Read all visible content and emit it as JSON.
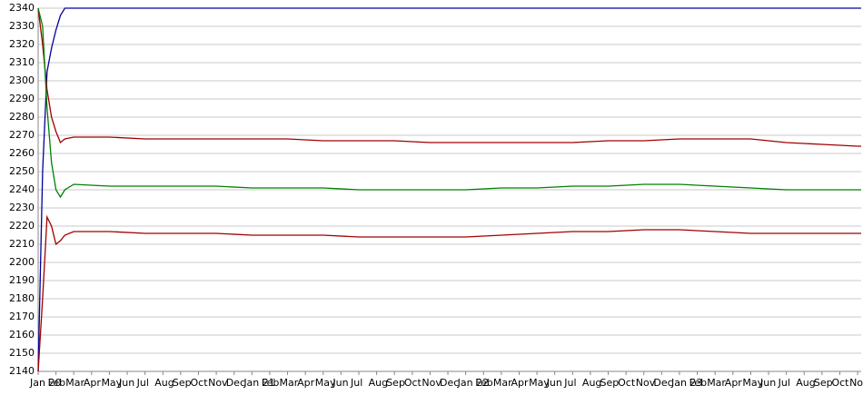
{
  "chart_data": {
    "type": "line",
    "x": [
      0,
      0.25,
      0.5,
      0.75,
      1,
      1.25,
      1.5,
      2,
      4,
      6,
      8,
      10,
      12,
      14,
      16,
      18,
      20,
      22,
      24,
      26,
      28,
      30,
      32,
      34,
      36,
      38,
      40,
      42,
      44,
      46,
      46.2
    ],
    "series": [
      {
        "color": "#0000a0",
        "values": [
          2140,
          2250,
          2305,
          2318,
          2328,
          2336,
          2340,
          2340,
          2340,
          2340,
          2340,
          2340,
          2340,
          2340,
          2340,
          2340,
          2340,
          2340,
          2340,
          2340,
          2340,
          2340,
          2340,
          2340,
          2340,
          2340,
          2340,
          2340,
          2340,
          2340,
          2340
        ]
      },
      {
        "color": "#a00000",
        "values": [
          2340,
          2320,
          2295,
          2280,
          2272,
          2266,
          2268,
          2269,
          2269,
          2268,
          2268,
          2268,
          2268,
          2268,
          2267,
          2267,
          2267,
          2266,
          2266,
          2266,
          2266,
          2266,
          2267,
          2267,
          2268,
          2268,
          2268,
          2266,
          2265,
          2264,
          2264
        ]
      },
      {
        "color": "#008000",
        "values": [
          2340,
          2330,
          2285,
          2255,
          2240,
          2236,
          2240,
          2243,
          2242,
          2242,
          2242,
          2242,
          2241,
          2241,
          2241,
          2240,
          2240,
          2240,
          2240,
          2241,
          2241,
          2242,
          2242,
          2243,
          2243,
          2242,
          2241,
          2240,
          2240,
          2240,
          2240
        ]
      },
      {
        "color": "#a00000",
        "values": [
          2140,
          2180,
          2225,
          2220,
          2210,
          2212,
          2215,
          2217,
          2217,
          2216,
          2216,
          2216,
          2215,
          2215,
          2215,
          2214,
          2214,
          2214,
          2214,
          2215,
          2216,
          2217,
          2217,
          2218,
          2218,
          2217,
          2216,
          2216,
          2216,
          2216,
          2216
        ]
      }
    ],
    "xlim": [
      0,
      46.2
    ],
    "xticks": [
      {
        "value": 0,
        "label": "Jan 20"
      },
      {
        "value": 1,
        "label": "Feb"
      },
      {
        "value": 2,
        "label": "Mar"
      },
      {
        "value": 3,
        "label": "Apr"
      },
      {
        "value": 4,
        "label": "May"
      },
      {
        "value": 5,
        "label": "Jun"
      },
      {
        "value": 6,
        "label": "Jul"
      },
      {
        "value": 7,
        "label": "Aug"
      },
      {
        "value": 8,
        "label": "Sep"
      },
      {
        "value": 9,
        "label": "Oct"
      },
      {
        "value": 10,
        "label": "Nov"
      },
      {
        "value": 11,
        "label": "Dec"
      },
      {
        "value": 12,
        "label": "Jan 21"
      },
      {
        "value": 13,
        "label": "Feb"
      },
      {
        "value": 14,
        "label": "Mar"
      },
      {
        "value": 15,
        "label": "Apr"
      },
      {
        "value": 16,
        "label": "May"
      },
      {
        "value": 17,
        "label": "Jun"
      },
      {
        "value": 18,
        "label": "Jul"
      },
      {
        "value": 19,
        "label": "Aug"
      },
      {
        "value": 20,
        "label": "Sep"
      },
      {
        "value": 21,
        "label": "Oct"
      },
      {
        "value": 22,
        "label": "Nov"
      },
      {
        "value": 23,
        "label": "Dec"
      },
      {
        "value": 24,
        "label": "Jan 22"
      },
      {
        "value": 25,
        "label": "Feb"
      },
      {
        "value": 26,
        "label": "Mar"
      },
      {
        "value": 27,
        "label": "Apr"
      },
      {
        "value": 28,
        "label": "May"
      },
      {
        "value": 29,
        "label": "Jun"
      },
      {
        "value": 30,
        "label": "Jul"
      },
      {
        "value": 31,
        "label": "Aug"
      },
      {
        "value": 32,
        "label": "Sep"
      },
      {
        "value": 33,
        "label": "Oct"
      },
      {
        "value": 34,
        "label": "Nov"
      },
      {
        "value": 35,
        "label": "Dec"
      },
      {
        "value": 36,
        "label": "Jan 23"
      },
      {
        "value": 37,
        "label": "Feb"
      },
      {
        "value": 38,
        "label": "Mar"
      },
      {
        "value": 39,
        "label": "Apr"
      },
      {
        "value": 40,
        "label": "May"
      },
      {
        "value": 41,
        "label": "Jun"
      },
      {
        "value": 42,
        "label": "Jul"
      },
      {
        "value": 43,
        "label": "Aug"
      },
      {
        "value": 44,
        "label": "Sep"
      },
      {
        "value": 45,
        "label": "Oct"
      },
      {
        "value": 46,
        "label": "Nov"
      }
    ],
    "ylim": [
      2140,
      2340
    ],
    "yticks": [
      2140,
      2150,
      2160,
      2170,
      2180,
      2190,
      2200,
      2210,
      2220,
      2230,
      2240,
      2250,
      2260,
      2270,
      2280,
      2290,
      2300,
      2310,
      2320,
      2330,
      2340
    ],
    "grid": true
  }
}
